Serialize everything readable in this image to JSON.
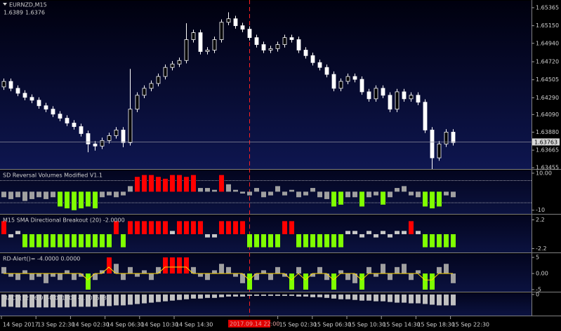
{
  "header": {
    "symbol": "EURNZD,M15",
    "bid": 1.6389,
    "ask": 1.6376
  },
  "x_axis": {
    "labels": [
      "14 Sep 2017",
      "13 Sep 22:30",
      "14 Sep 02:30",
      "14 Sep 06:30",
      "14 Sep 10:30",
      "14 Sep 14:30",
      "15 Sep 02:30",
      "15 Sep 06:30",
      "15 Sep 10:30",
      "15 Sep 14:30",
      "15 Sep 18:30",
      "15 Sep 22:30"
    ],
    "crosshair_label": "2017.09.14 22:00"
  },
  "chart_data": [
    {
      "type": "candlestick",
      "up_color": "#000000",
      "down_color": "#ffffff",
      "wick_color": "#ffffff",
      "open": [
        1.6442,
        1.64485,
        1.64403,
        1.64344,
        1.64295,
        1.64261,
        1.64195,
        1.64154,
        1.64095,
        1.64046,
        1.63988,
        1.63946,
        1.63863,
        1.63739,
        1.63714,
        1.6378,
        1.63838,
        1.63905,
        1.63755,
        1.64154,
        1.6432,
        1.64403,
        1.64461,
        1.64544,
        1.64652,
        1.64693,
        1.64735,
        1.64984,
        1.65067,
        1.64842,
        1.64859,
        1.64984,
        1.65191,
        1.65233,
        1.6515,
        1.65108,
        1.65008,
        1.64925,
        1.64859,
        1.64876,
        1.64925,
        1.65008,
        1.64984,
        1.64859,
        1.64793,
        1.6471,
        1.64652,
        1.64569,
        1.64403,
        1.64486,
        1.64544,
        1.6451,
        1.64361,
        1.64278,
        1.64403,
        1.6432,
        1.64154,
        1.64361,
        1.64278,
        1.6432,
        1.64237,
        1.63905,
        1.63573,
        1.63739,
        1.6388
      ],
      "high": [
        1.6452,
        1.6452,
        1.64438,
        1.64379,
        1.6433,
        1.64296,
        1.6423,
        1.64189,
        1.6413,
        1.64081,
        1.64023,
        1.63981,
        1.63898,
        1.63774,
        1.63815,
        1.63873,
        1.6394,
        1.6394,
        1.64635,
        1.64355,
        1.64438,
        1.64496,
        1.64579,
        1.64687,
        1.64728,
        1.6477,
        1.6518,
        1.65102,
        1.65102,
        1.64894,
        1.65019,
        1.65226,
        1.6531,
        1.65268,
        1.65185,
        1.65143,
        1.65043,
        1.6496,
        1.64911,
        1.6496,
        1.65043,
        1.65043,
        1.65019,
        1.64894,
        1.64828,
        1.64745,
        1.64687,
        1.64604,
        1.64521,
        1.64579,
        1.64579,
        1.64545,
        1.64396,
        1.64438,
        1.64438,
        1.64355,
        1.64396,
        1.64396,
        1.64355,
        1.64355,
        1.64272,
        1.6394,
        1.63774,
        1.63915,
        1.63915
      ],
      "low": [
        1.64385,
        1.64368,
        1.64309,
        1.6426,
        1.64226,
        1.6416,
        1.64119,
        1.6406,
        1.64011,
        1.63953,
        1.63911,
        1.63828,
        1.6364,
        1.6366,
        1.63679,
        1.63745,
        1.63803,
        1.637,
        1.6372,
        1.64119,
        1.64285,
        1.64368,
        1.64426,
        1.64509,
        1.64617,
        1.64658,
        1.647,
        1.64949,
        1.64807,
        1.64807,
        1.64824,
        1.64949,
        1.65156,
        1.65115,
        1.65073,
        1.64973,
        1.6489,
        1.64824,
        1.64824,
        1.64841,
        1.6489,
        1.64949,
        1.64824,
        1.64758,
        1.64675,
        1.64617,
        1.64534,
        1.64368,
        1.64368,
        1.64451,
        1.64475,
        1.64326,
        1.64243,
        1.64243,
        1.64285,
        1.64119,
        1.64119,
        1.64243,
        1.64243,
        1.64202,
        1.6387,
        1.6344,
        1.63538,
        1.63704,
        1.6372
      ],
      "close": [
        1.64485,
        1.64403,
        1.64344,
        1.64295,
        1.64261,
        1.64195,
        1.64154,
        1.64095,
        1.64046,
        1.63988,
        1.63946,
        1.63863,
        1.63739,
        1.63714,
        1.6378,
        1.63838,
        1.63905,
        1.63755,
        1.64154,
        1.6432,
        1.64403,
        1.64461,
        1.64544,
        1.64652,
        1.64693,
        1.64735,
        1.64984,
        1.65067,
        1.64842,
        1.64859,
        1.64984,
        1.65191,
        1.65233,
        1.6515,
        1.65108,
        1.65008,
        1.64925,
        1.64859,
        1.64876,
        1.64925,
        1.65008,
        1.64984,
        1.64859,
        1.64793,
        1.6471,
        1.64652,
        1.64569,
        1.64403,
        1.64486,
        1.64544,
        1.6451,
        1.64361,
        1.64278,
        1.64403,
        1.6432,
        1.64154,
        1.64361,
        1.64278,
        1.6432,
        1.64237,
        1.63905,
        1.63573,
        1.63739,
        1.6388,
        1.63755
      ],
      "current_price": 1.63763,
      "ylim": [
        1.6344,
        1.6544
      ],
      "yticks": [
        1.65365,
        {
          "value": 1.6515,
          "label": "1.65150"
        },
        {
          "value": 1.6494,
          "label": "1.64940"
        },
        {
          "value": 1.6472,
          "label": "1.64720"
        },
        1.64505,
        {
          "value": 1.6429,
          "label": "1.64290"
        },
        {
          "value": 1.6409,
          "label": "1.64090"
        },
        {
          "value": 1.6388,
          "label": "1.63880"
        },
        1.63665,
        1.63455
      ]
    },
    {
      "type": "histogram",
      "title": "SD Reversal Volumes Modified V1.1",
      "values": [
        -3,
        -4,
        -3,
        -5,
        -4,
        -3,
        -4,
        -3,
        -8,
        -9,
        -10,
        -9,
        -8,
        -9,
        -3,
        -2,
        -3,
        -2,
        3,
        8,
        9,
        9,
        8,
        7,
        9,
        9,
        8,
        9,
        2,
        2,
        1,
        9,
        4,
        1,
        -1,
        -2,
        2,
        -3,
        -2,
        3,
        -2,
        1,
        -3,
        -2,
        2,
        -3,
        -4,
        -8,
        -7,
        -3,
        -3,
        -8,
        -3,
        -2,
        -7,
        -3,
        2,
        3,
        -2,
        -3,
        -8,
        -9,
        -8,
        -2,
        -3
      ],
      "levels": [
        6,
        -6
      ],
      "color_split": [
        6,
        -6
      ],
      "colors": {
        "high": "#ff0000",
        "low": "#7fff00",
        "mid": "#a0a0a0"
      },
      "ylim": [
        -12,
        11.5
      ],
      "yticks": [
        {
          "value": 10,
          "label": "10.00"
        },
        -10
      ]
    },
    {
      "type": "histogram",
      "title": "M15 SMA Directional Breakout (20) -2.0000",
      "values": [
        2,
        -0.5,
        0.5,
        -2,
        -2,
        -2,
        -2,
        -2,
        -2,
        -2,
        -2,
        -2,
        -2,
        -2,
        -2,
        -2,
        2,
        -2,
        2,
        2,
        2,
        2,
        2,
        2,
        0.5,
        2,
        2,
        2,
        2,
        -0.5,
        -0.5,
        2,
        2,
        2,
        2,
        -2,
        -2,
        -2,
        -2,
        -2,
        2,
        2,
        -2,
        -2,
        -2,
        -2,
        -2,
        -2,
        -2,
        0.5,
        0.5,
        -0.5,
        0.5,
        -0.5,
        0.5,
        -0.5,
        0.5,
        0.5,
        2,
        0.5,
        -2,
        -2,
        -2,
        -2,
        -2
      ],
      "color_split": [
        1,
        -1
      ],
      "colors": {
        "high": "#ff0000",
        "low": "#7fff00",
        "mid": "#c8c8c8"
      },
      "ylim": [
        -2.8,
        2.9
      ],
      "yticks": [
        2.2,
        -2.2
      ]
    },
    {
      "type": "histogram",
      "title": "RD-Alert()=  -4.0000 0.0000",
      "values": [
        2,
        -1,
        -2,
        1,
        -2,
        -1,
        -3,
        -1,
        -2,
        1,
        -2,
        -1,
        -5,
        -2,
        1,
        5,
        3,
        -2,
        2,
        -1,
        1,
        -2,
        2,
        5,
        5,
        5,
        5,
        2,
        -1,
        -2,
        1,
        3,
        2,
        -1,
        -3,
        -5,
        -2,
        1,
        -2,
        2,
        -1,
        -5,
        2,
        -5,
        -1,
        2,
        -2,
        -5,
        1,
        -2,
        -3,
        -5,
        2,
        -1,
        3,
        -2,
        2,
        3,
        -2,
        1,
        -5,
        -5,
        2,
        3,
        -3
      ],
      "line": {
        "color": "#ffd700",
        "values": [
          0,
          0,
          0,
          0,
          0,
          0,
          0,
          0,
          0,
          0,
          0,
          0,
          -2,
          0,
          0,
          2,
          0,
          0,
          0,
          0,
          0,
          0,
          0,
          2,
          2,
          2,
          2,
          0,
          0,
          0,
          0,
          0,
          0,
          0,
          0,
          -2,
          0,
          0,
          0,
          0,
          0,
          -2,
          0,
          -2,
          0,
          0,
          0,
          -2,
          0,
          0,
          0,
          -2,
          0,
          0,
          0,
          0,
          0,
          0,
          0,
          0,
          -2,
          -2,
          0,
          0,
          0
        ]
      },
      "color_split": [
        4.5,
        -4.5
      ],
      "colors": {
        "high": "#ff0000",
        "low": "#7fff00",
        "mid": "#a0a0a0"
      },
      "ylim": [
        -5.65,
        6.1
      ],
      "yticks": [
        5,
        {
          "value": 0,
          "label": "0.00"
        },
        -5
      ]
    },
    {
      "type": "histogram",
      "title": "MACD(12,26,9) -0.001604 -0.001593",
      "values": [
        -0.0018,
        -0.0018,
        -0.0019,
        -0.0019,
        -0.0019,
        -0.0019,
        -0.0019,
        -0.0019,
        -0.0019,
        -0.0019,
        -0.0018,
        -0.0018,
        -0.0018,
        -0.0018,
        -0.0017,
        -0.0017,
        -0.0016,
        -0.0016,
        -0.0015,
        -0.0014,
        -0.0013,
        -0.0012,
        -0.0011,
        -0.001,
        -0.0009,
        -0.0008,
        -0.0007,
        -0.0006,
        -0.0006,
        -0.0005,
        -0.0005,
        -0.0004,
        -0.0003,
        -0.0003,
        -0.0003,
        -0.0002,
        -0.0002,
        -0.0002,
        -0.0002,
        -0.0002,
        -0.0002,
        -0.0002,
        -0.0003,
        -0.0003,
        -0.0004,
        -0.0004,
        -0.0005,
        -0.0006,
        -0.0007,
        -0.0007,
        -0.0008,
        -0.0009,
        -0.0009,
        -0.001,
        -0.001,
        -0.0011,
        -0.0012,
        -0.0012,
        -0.0013,
        -0.0013,
        -0.0014,
        -0.0015,
        -0.0016,
        -0.0016,
        -0.0016
      ],
      "color_split": [
        1,
        -1
      ],
      "colors": {
        "high": "#c0c0c0",
        "low": "#c0c0c0",
        "mid": "#c0c0c0"
      },
      "ylim": [
        -0.0031,
        0.0002
      ],
      "yticks": [
        0
      ]
    }
  ]
}
